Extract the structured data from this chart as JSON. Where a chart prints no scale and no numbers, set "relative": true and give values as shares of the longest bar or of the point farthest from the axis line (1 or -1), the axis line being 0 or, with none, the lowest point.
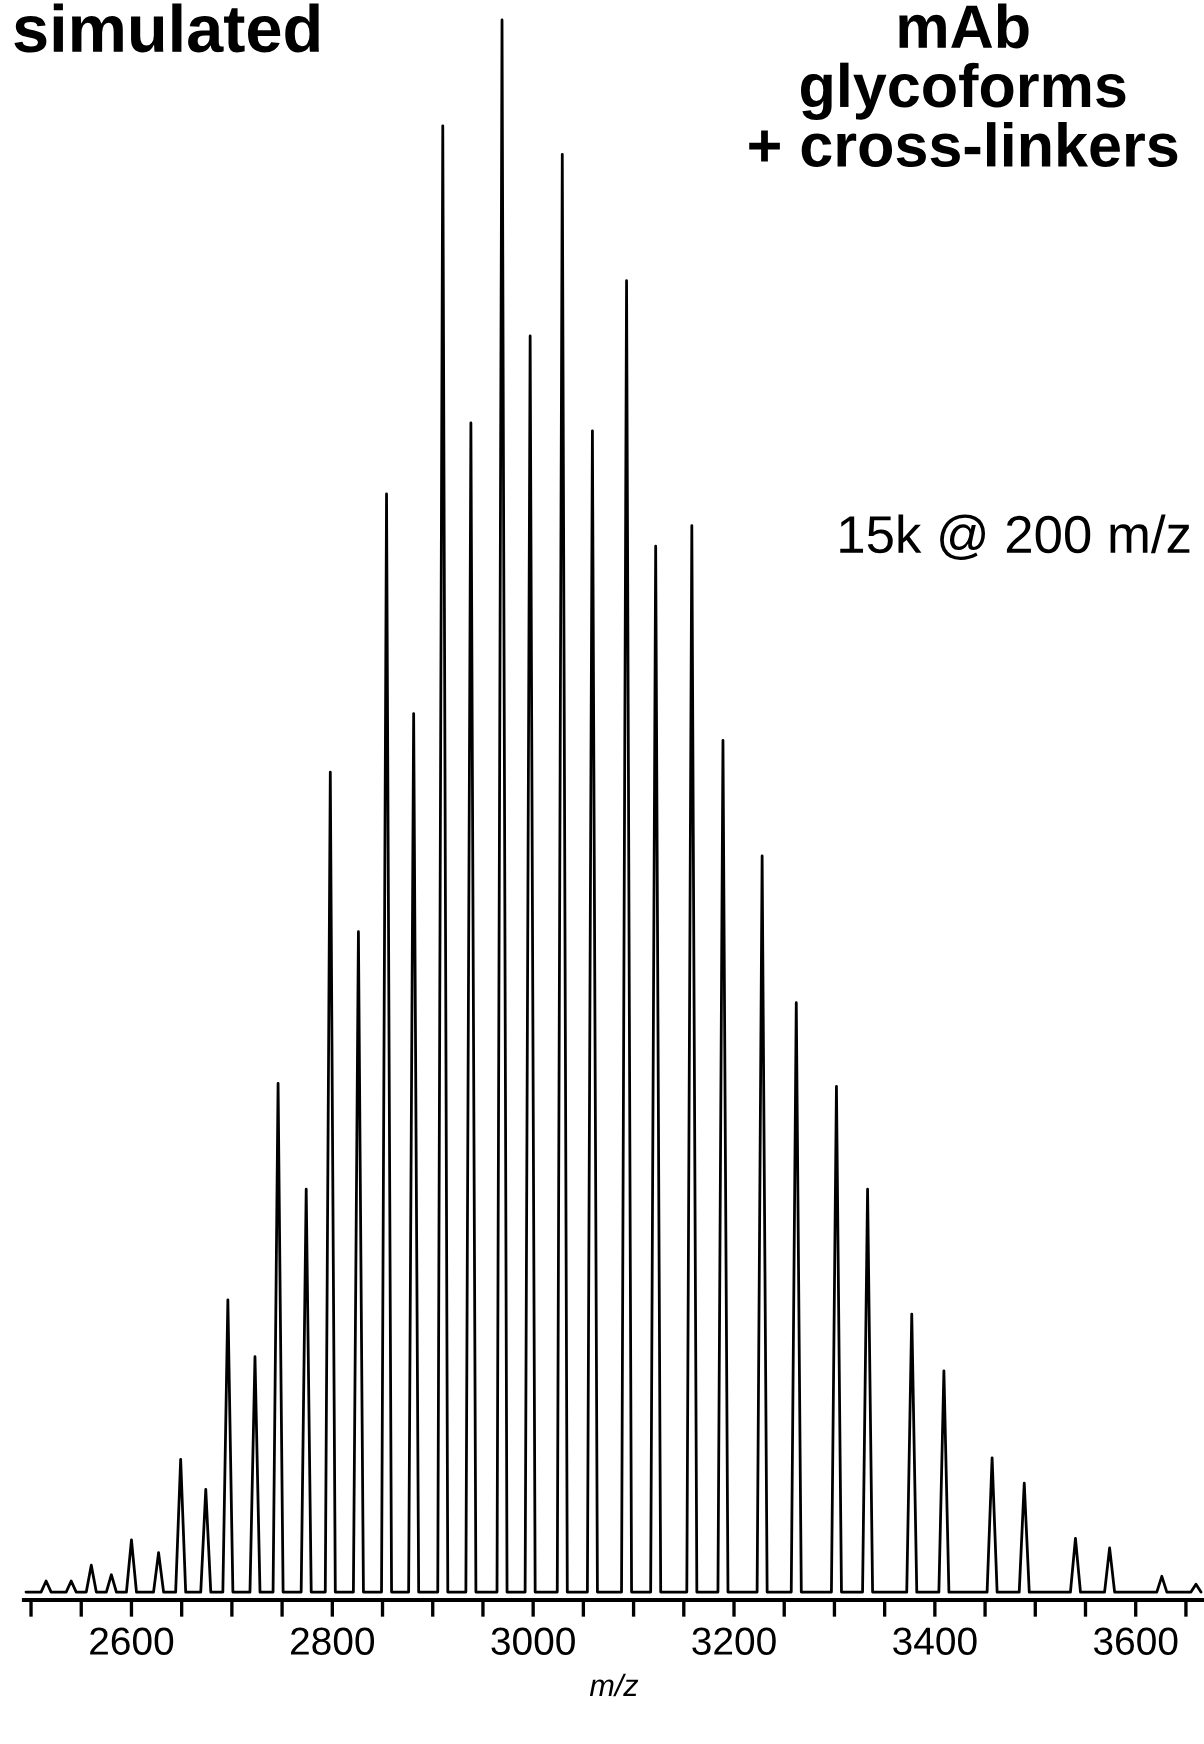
{
  "chart_data": {
    "type": "line",
    "title": "simulated",
    "subtitle": "mAb\nglycoforms\n+ cross-linkers",
    "xlabel": "m/z",
    "annotations": [
      "15k @ 200 m/z"
    ],
    "relative": true,
    "grid": false,
    "legend": false,
    "marker": "none",
    "line_style": "solid",
    "tick_labels": "x",
    "xlim": [
      2493,
      3668
    ],
    "xticks": [
      {
        "value": 2500,
        "label": null
      },
      {
        "value": 2550,
        "label": null
      },
      2600,
      {
        "value": 2650,
        "label": null
      },
      {
        "value": 2700,
        "label": null
      },
      {
        "value": 2750,
        "label": null
      },
      2800,
      {
        "value": 2850,
        "label": null
      },
      {
        "value": 2900,
        "label": null
      },
      {
        "value": 2950,
        "label": null
      },
      3000,
      {
        "value": 3050,
        "label": null
      },
      {
        "value": 3100,
        "label": null
      },
      {
        "value": 3150,
        "label": null
      },
      3200,
      {
        "value": 3250,
        "label": null
      },
      {
        "value": 3300,
        "label": null
      },
      {
        "value": 3350,
        "label": null
      },
      3400,
      {
        "value": 3450,
        "label": null
      },
      {
        "value": 3500,
        "label": null
      },
      {
        "value": 3550,
        "label": null
      },
      3600,
      {
        "value": 3650,
        "label": null
      }
    ],
    "series": [
      {
        "color": "#000000",
        "x": [
          2495,
          2510,
          2515,
          2520,
          2535,
          2540,
          2545,
          2555,
          2560,
          2565,
          2575,
          2580,
          2585,
          2595,
          2600,
          2605,
          2622,
          2627,
          2632,
          2644,
          2649,
          2654,
          2669,
          2674,
          2679,
          2691,
          2696,
          2701,
          2718,
          2723,
          2728,
          2741,
          2746,
          2751,
          2769,
          2774,
          2779,
          2793,
          2798,
          2803,
          2821,
          2826,
          2831,
          2849,
          2854,
          2859,
          2876,
          2881,
          2886,
          2905,
          2910,
          2915,
          2933,
          2938,
          2943,
          2964,
          2969,
          2974,
          2992,
          2997,
          3002,
          3024,
          3029,
          3034,
          3054,
          3059,
          3064,
          3088,
          3093,
          3098,
          3117,
          3122,
          3127,
          3153,
          3158,
          3163,
          3184,
          3189,
          3194,
          3223,
          3228,
          3233,
          3257,
          3262,
          3267,
          3297,
          3302,
          3307,
          3328,
          3333,
          3338,
          3372,
          3377,
          3382,
          3404,
          3409,
          3414,
          3452,
          3457,
          3462,
          3484,
          3489,
          3494,
          3535,
          3540,
          3545,
          3569,
          3574,
          3579,
          3621,
          3626,
          3631,
          3655,
          3660,
          3665
        ],
        "values": [
          0.005,
          0.005,
          0.012,
          0.005,
          0.005,
          0.012,
          0.005,
          0.005,
          0.022,
          0.005,
          0.005,
          0.016,
          0.005,
          0.005,
          0.038,
          0.005,
          0.005,
          0.03,
          0.005,
          0.005,
          0.089,
          0.005,
          0.005,
          0.07,
          0.005,
          0.005,
          0.19,
          0.005,
          0.005,
          0.154,
          0.005,
          0.005,
          0.327,
          0.005,
          0.005,
          0.26,
          0.005,
          0.005,
          0.524,
          0.005,
          0.005,
          0.423,
          0.005,
          0.005,
          0.7,
          0.005,
          0.005,
          0.561,
          0.005,
          0.005,
          0.933,
          0.005,
          0.005,
          0.745,
          0.005,
          0.005,
          1.0,
          0.005,
          0.005,
          0.8,
          0.005,
          0.005,
          0.915,
          0.005,
          0.005,
          0.74,
          0.005,
          0.005,
          0.835,
          0.005,
          0.005,
          0.667,
          0.005,
          0.005,
          0.68,
          0.005,
          0.005,
          0.544,
          0.005,
          0.005,
          0.471,
          0.005,
          0.005,
          0.378,
          0.005,
          0.005,
          0.325,
          0.005,
          0.005,
          0.26,
          0.005,
          0.005,
          0.181,
          0.005,
          0.005,
          0.145,
          0.005,
          0.005,
          0.09,
          0.005,
          0.005,
          0.074,
          0.005,
          0.005,
          0.039,
          0.005,
          0.005,
          0.033,
          0.005,
          0.005,
          0.015,
          0.005,
          0.005,
          0.01,
          0.005
        ]
      }
    ]
  }
}
